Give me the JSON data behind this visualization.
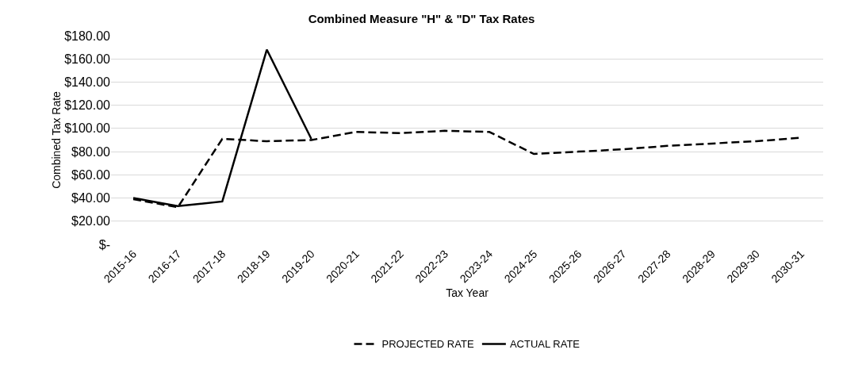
{
  "chart_data": {
    "type": "line",
    "title": "Combined Measure \"H\" & \"D\" Tax Rates",
    "xlabel": "Tax Year",
    "ylabel": "Combined Tax Rate",
    "categories": [
      "2015-16",
      "2016-17",
      "2017-18",
      "2018-19",
      "2019-20",
      "2020-21",
      "2021-22",
      "2022-23",
      "2023-24",
      "2024-25",
      "2025-26",
      "2026-27",
      "2027-28",
      "2028-29",
      "2029-30",
      "2030-31"
    ],
    "series": [
      {
        "name": "PROJECTED RATE",
        "color": "#000000",
        "line_style": "dashed",
        "values": [
          39,
          32,
          91,
          89,
          90,
          97,
          96,
          98,
          97,
          78,
          80,
          82,
          85,
          87,
          89,
          92
        ]
      },
      {
        "name": "ACTUAL RATE",
        "color": "#000000",
        "line_style": "solid",
        "values": [
          40,
          33,
          37,
          168,
          91,
          null,
          null,
          null,
          null,
          null,
          null,
          null,
          null,
          null,
          null,
          null
        ]
      }
    ],
    "ylim": [
      0,
      180
    ],
    "yticks": [
      {
        "value": 0,
        "label": "$-"
      },
      {
        "value": 20,
        "label": "$20.00"
      },
      {
        "value": 40,
        "label": "$40.00"
      },
      {
        "value": 60,
        "label": "$60.00"
      },
      {
        "value": 80,
        "label": "$80.00"
      },
      {
        "value": 100,
        "label": "$100.00"
      },
      {
        "value": 120,
        "label": "$120.00"
      },
      {
        "value": 140,
        "label": "$140.00"
      },
      {
        "value": 160,
        "label": "$160.00"
      },
      {
        "value": 180,
        "label": "$180.00"
      }
    ],
    "grid": "y",
    "legend": "bottom",
    "marker": "none"
  }
}
